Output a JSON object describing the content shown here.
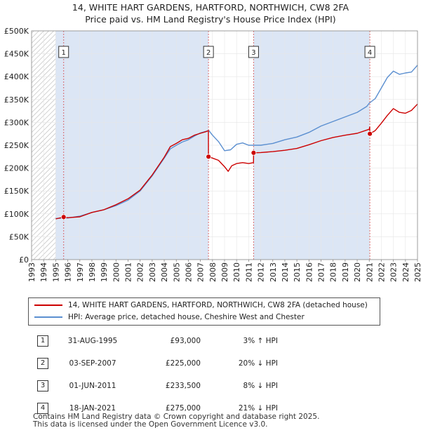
{
  "title_line1": "14, WHITE HART GARDENS, HARTFORD, NORTHWICH, CW8 2FA",
  "title_line2": "Price paid vs. HM Land Registry's House Price Index (HPI)",
  "chart_data": {
    "type": "line",
    "title": "14, WHITE HART GARDENS, HARTFORD, NORTHWICH, CW8 2FA — Price paid vs. HM Land Registry's House Price Index (HPI)",
    "xlim": [
      1993,
      2025
    ],
    "ylim": [
      0,
      500000
    ],
    "xticks": [
      1993,
      1994,
      1995,
      1996,
      1997,
      1998,
      1999,
      2000,
      2001,
      2002,
      2003,
      2004,
      2005,
      2006,
      2007,
      2008,
      2009,
      2010,
      2011,
      2012,
      2013,
      2014,
      2015,
      2016,
      2017,
      2018,
      2019,
      2020,
      2021,
      2022,
      2023,
      2024,
      2025
    ],
    "yticks": [
      0,
      50000,
      100000,
      150000,
      200000,
      250000,
      300000,
      350000,
      400000,
      450000,
      500000
    ],
    "ytick_labels": [
      "£0",
      "£50K",
      "£100K",
      "£150K",
      "£200K",
      "£250K",
      "£300K",
      "£350K",
      "£400K",
      "£450K",
      "£500K"
    ],
    "data_start": 1995.0,
    "hatch_until": 1995.0,
    "series": [
      {
        "name": "14, WHITE HART GARDENS, HARTFORD, NORTHWICH, CW8 2FA (detached house)",
        "color": "#cc0000",
        "points": [
          [
            1995.0,
            89000
          ],
          [
            1995.66,
            93000
          ],
          [
            1996.0,
            91500
          ],
          [
            1997.0,
            93500
          ],
          [
            1998.0,
            103000
          ],
          [
            1999.0,
            109000
          ],
          [
            2000.0,
            120000
          ],
          [
            2001.0,
            133000
          ],
          [
            2002.0,
            152000
          ],
          [
            2003.0,
            185000
          ],
          [
            2004.0,
            224000
          ],
          [
            2004.5,
            247000
          ],
          [
            2005.0,
            254000
          ],
          [
            2005.5,
            262000
          ],
          [
            2006.0,
            265000
          ],
          [
            2006.5,
            272000
          ],
          [
            2007.0,
            276000
          ],
          [
            2007.5,
            280000
          ],
          [
            2007.66,
            282000
          ],
          [
            2007.67,
            225000
          ],
          [
            2008.0,
            222000
          ],
          [
            2008.5,
            217000
          ],
          [
            2009.0,
            203000
          ],
          [
            2009.3,
            193000
          ],
          [
            2009.6,
            205000
          ],
          [
            2010.0,
            210000
          ],
          [
            2010.5,
            212000
          ],
          [
            2011.0,
            210000
          ],
          [
            2011.4,
            212000
          ],
          [
            2011.41,
            233500
          ],
          [
            2012.0,
            234000
          ],
          [
            2013.0,
            236000
          ],
          [
            2014.0,
            239000
          ],
          [
            2015.0,
            243000
          ],
          [
            2016.0,
            251000
          ],
          [
            2017.0,
            260000
          ],
          [
            2018.0,
            267000
          ],
          [
            2019.0,
            272000
          ],
          [
            2020.0,
            276000
          ],
          [
            2021.0,
            285000
          ],
          [
            2021.04,
            290000
          ],
          [
            2021.05,
            275000
          ],
          [
            2021.5,
            282000
          ],
          [
            2022.0,
            298000
          ],
          [
            2022.5,
            315000
          ],
          [
            2023.0,
            330000
          ],
          [
            2023.5,
            322000
          ],
          [
            2024.0,
            320000
          ],
          [
            2024.5,
            326000
          ],
          [
            2025.0,
            340000
          ]
        ]
      },
      {
        "name": "HPI: Average price, detached house, Cheshire West and Chester",
        "color": "#5b8fd0",
        "points": [
          [
            1995.0,
            90000
          ],
          [
            1996.0,
            91000
          ],
          [
            1997.0,
            95000
          ],
          [
            1998.0,
            103000
          ],
          [
            1999.0,
            109000
          ],
          [
            2000.0,
            118000
          ],
          [
            2001.0,
            130000
          ],
          [
            2002.0,
            150000
          ],
          [
            2003.0,
            183000
          ],
          [
            2004.0,
            222000
          ],
          [
            2004.5,
            242000
          ],
          [
            2005.0,
            250000
          ],
          [
            2005.5,
            257000
          ],
          [
            2006.0,
            262000
          ],
          [
            2006.5,
            270000
          ],
          [
            2007.0,
            277000
          ],
          [
            2007.7,
            282000
          ],
          [
            2008.0,
            272000
          ],
          [
            2008.5,
            258000
          ],
          [
            2009.0,
            238000
          ],
          [
            2009.5,
            240000
          ],
          [
            2010.0,
            252000
          ],
          [
            2010.5,
            255000
          ],
          [
            2011.0,
            250000
          ],
          [
            2012.0,
            250000
          ],
          [
            2013.0,
            254000
          ],
          [
            2014.0,
            262000
          ],
          [
            2015.0,
            268000
          ],
          [
            2016.0,
            278000
          ],
          [
            2017.0,
            292000
          ],
          [
            2018.0,
            302000
          ],
          [
            2019.0,
            312000
          ],
          [
            2020.0,
            322000
          ],
          [
            2020.8,
            335000
          ],
          [
            2021.0,
            342000
          ],
          [
            2021.5,
            352000
          ],
          [
            2022.0,
            375000
          ],
          [
            2022.5,
            398000
          ],
          [
            2023.0,
            412000
          ],
          [
            2023.5,
            405000
          ],
          [
            2024.0,
            408000
          ],
          [
            2024.5,
            410000
          ],
          [
            2025.0,
            425000
          ]
        ]
      }
    ],
    "sales": [
      {
        "num": "1",
        "x": 1995.66,
        "price": 93000
      },
      {
        "num": "2",
        "x": 2007.67,
        "price": 225000
      },
      {
        "num": "3",
        "x": 2011.41,
        "price": 233500
      },
      {
        "num": "4",
        "x": 2021.05,
        "price": 275000
      }
    ],
    "shade_band_color": "#dce6f5",
    "sale_line_color": "#cc0000"
  },
  "legend": {
    "property_label": "14, WHITE HART GARDENS, HARTFORD, NORTHWICH, CW8 2FA (detached house)",
    "hpi_label": "HPI: Average price, detached house, Cheshire West and Chester"
  },
  "sales_table": [
    {
      "num": "1",
      "date": "31-AUG-1995",
      "price": "£93,000",
      "hpi": "3% ↑ HPI"
    },
    {
      "num": "2",
      "date": "03-SEP-2007",
      "price": "£225,000",
      "hpi": "20% ↓ HPI"
    },
    {
      "num": "3",
      "date": "01-JUN-2011",
      "price": "£233,500",
      "hpi": "8% ↓ HPI"
    },
    {
      "num": "4",
      "date": "18-JAN-2021",
      "price": "£275,000",
      "hpi": "21% ↓ HPI"
    }
  ],
  "footer": {
    "line1": "Contains HM Land Registry data © Crown copyright and database right 2025.",
    "line2": "This data is licensed under the Open Government Licence v3.0."
  }
}
